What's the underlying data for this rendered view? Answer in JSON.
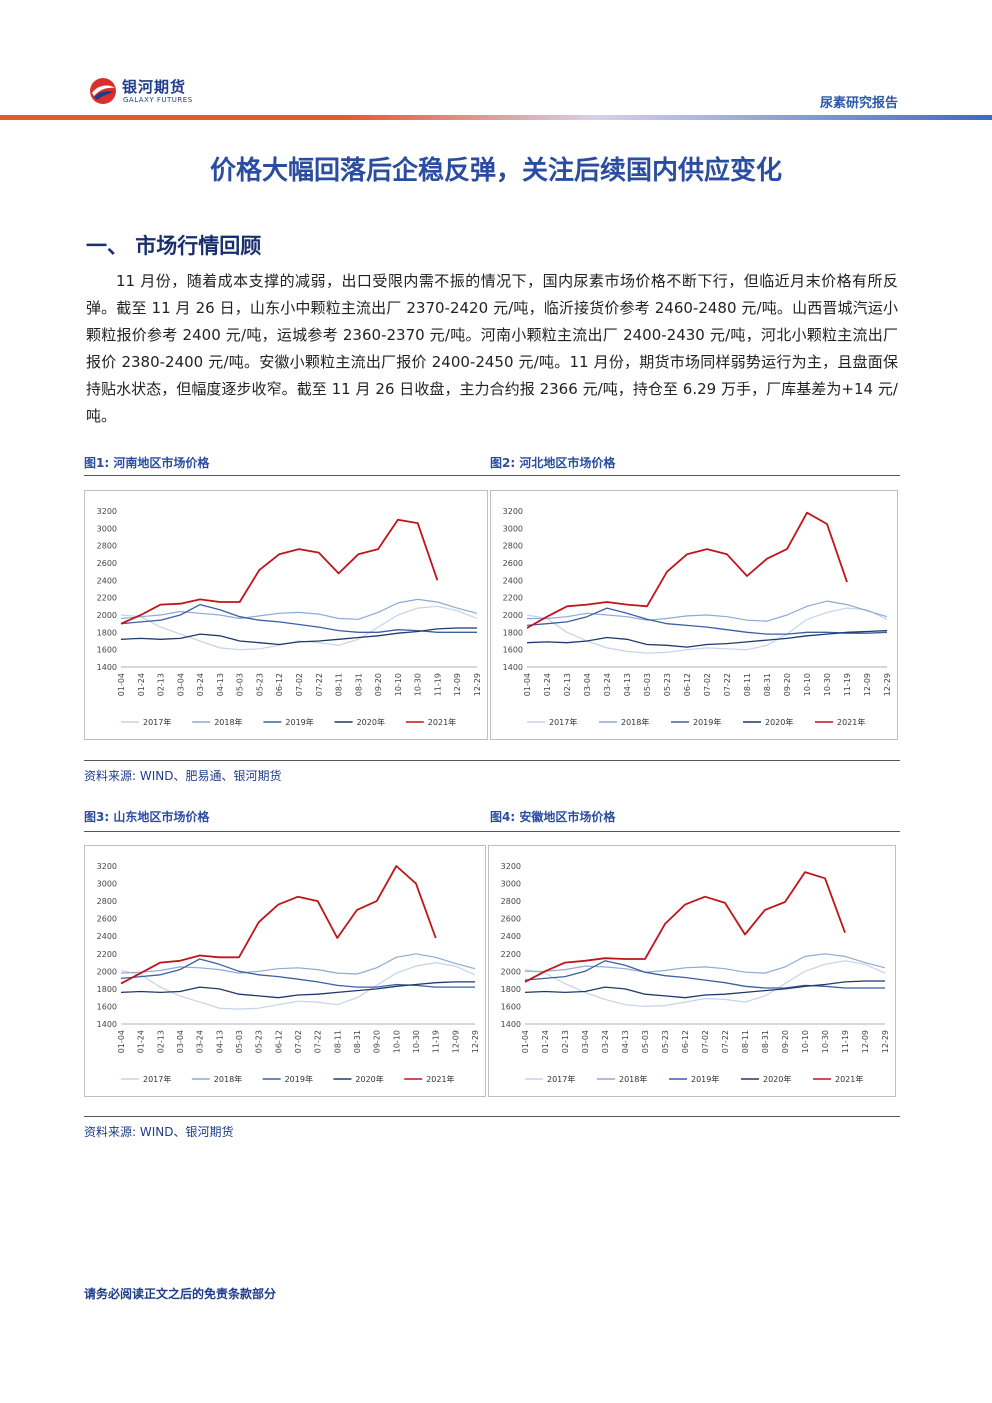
{
  "header": {
    "logo_cn": "银河期货",
    "logo_en": "GALAXY FUTURES",
    "report_type": "尿素研究报告"
  },
  "main_title": "价格大幅回落后企稳反弹，关注后续国内供应变化",
  "section1": {
    "title": "一、 市场行情回顾",
    "paragraph": "11 月份，随着成本支撑的减弱，出口受限内需不振的情况下，国内尿素市场价格不断下行，但临近月末价格有所反弹。截至 11 月 26 日，山东小中颗粒主流出厂 2370-2420 元/吨，临沂接货价参考 2460-2480 元/吨。山西晋城汽运小颗粒报价参考 2400 元/吨，运城参考 2360-2370 元/吨。河南小颗粒主流出厂 2400-2430 元/吨，河北小颗粒主流出厂报价 2380-2400 元/吨。安徽小颗粒主流出厂报价 2400-2450 元/吨。11 月份，期货市场同样弱势运行为主，且盘面保持贴水状态，但幅度逐步收窄。截至 11 月 26 日收盘，主力合约报 2366 元/吨，持仓至 6.29 万手，厂库基差为+14 元/吨。"
  },
  "figures": {
    "fig1_label": "图1: 河南地区市场价格",
    "fig2_label": "图2: 河北地区市场价格",
    "fig3_label": "图3: 山东地区市场价格",
    "fig4_label": "图4: 安徽地区市场价格",
    "source1": "资料来源: WIND、肥易通、银河期货",
    "source2": "资料来源: WIND、银河期货"
  },
  "footer_note": "请务必阅读正文之后的免责条款部分",
  "colors": {
    "s2017": "#c5d3e8",
    "s2018": "#8eaad6",
    "s2019": "#3b5fa3",
    "s2020": "#1f3a68",
    "s2021": "#c0141b"
  },
  "chart_data": [
    {
      "type": "line",
      "title": "图1: 河南地区市场价格",
      "x": [
        "01-04",
        "01-24",
        "02-13",
        "03-04",
        "03-24",
        "04-13",
        "05-03",
        "05-23",
        "06-12",
        "07-02",
        "07-22",
        "08-11",
        "08-31",
        "09-20",
        "10-10",
        "10-30",
        "11-19",
        "12-09",
        "12-29"
      ],
      "ylim": [
        1400,
        3200
      ],
      "yticks": [
        1400,
        1600,
        1800,
        2000,
        2200,
        2400,
        2600,
        2800,
        3000,
        3200
      ],
      "series": [
        {
          "name": "2017年",
          "values": [
            2000,
            1980,
            1860,
            1780,
            1700,
            1620,
            1600,
            1610,
            1650,
            1700,
            1680,
            1650,
            1720,
            1860,
            2000,
            2080,
            2100,
            2050,
            1960
          ]
        },
        {
          "name": "2018年",
          "values": [
            1960,
            1980,
            2000,
            2040,
            2020,
            2000,
            1960,
            1990,
            2020,
            2030,
            2010,
            1960,
            1950,
            2030,
            2140,
            2180,
            2150,
            2080,
            2020
          ]
        },
        {
          "name": "2019年",
          "values": [
            1900,
            1920,
            1940,
            2000,
            2120,
            2060,
            1980,
            1940,
            1920,
            1890,
            1860,
            1820,
            1800,
            1800,
            1830,
            1820,
            1800,
            1800,
            1800
          ]
        },
        {
          "name": "2020年",
          "values": [
            1720,
            1730,
            1720,
            1730,
            1780,
            1760,
            1700,
            1680,
            1660,
            1690,
            1700,
            1720,
            1740,
            1760,
            1790,
            1810,
            1840,
            1850,
            1850
          ]
        },
        {
          "name": "2021年",
          "values": [
            1900,
            2000,
            2120,
            2130,
            2180,
            2150,
            2150,
            2520,
            2700,
            2760,
            2720,
            2480,
            2700,
            2760,
            3100,
            3060,
            2400,
            null,
            null
          ]
        }
      ]
    },
    {
      "type": "line",
      "title": "图2: 河北地区市场价格",
      "x": [
        "01-04",
        "01-24",
        "02-13",
        "03-04",
        "03-24",
        "04-13",
        "05-03",
        "05-23",
        "06-12",
        "07-02",
        "07-22",
        "08-11",
        "08-31",
        "09-20",
        "10-10",
        "10-30",
        "11-19",
        "12-09",
        "12-29"
      ],
      "ylim": [
        1400,
        3200
      ],
      "yticks": [
        1400,
        1600,
        1800,
        2000,
        2200,
        2400,
        2600,
        2800,
        3000,
        3200
      ],
      "series": [
        {
          "name": "2017年",
          "values": [
            2000,
            1960,
            1800,
            1700,
            1620,
            1580,
            1560,
            1570,
            1600,
            1620,
            1610,
            1600,
            1650,
            1780,
            1950,
            2030,
            2080,
            2060,
            1950
          ]
        },
        {
          "name": "2018年",
          "values": [
            1960,
            1960,
            1980,
            2020,
            2000,
            1980,
            1940,
            1960,
            1990,
            2000,
            1980,
            1940,
            1930,
            2000,
            2100,
            2160,
            2120,
            2050,
            1980
          ]
        },
        {
          "name": "2019年",
          "values": [
            1880,
            1900,
            1920,
            1980,
            2080,
            2020,
            1950,
            1900,
            1880,
            1860,
            1830,
            1800,
            1780,
            1780,
            1800,
            1800,
            1790,
            1790,
            1800
          ]
        },
        {
          "name": "2020年",
          "values": [
            1680,
            1690,
            1680,
            1700,
            1740,
            1720,
            1660,
            1650,
            1630,
            1660,
            1670,
            1690,
            1710,
            1730,
            1760,
            1780,
            1800,
            1810,
            1820
          ]
        },
        {
          "name": "2021年",
          "values": [
            1850,
            1980,
            2100,
            2120,
            2150,
            2120,
            2100,
            2500,
            2700,
            2760,
            2700,
            2450,
            2650,
            2760,
            3180,
            3050,
            2380,
            null,
            null
          ]
        }
      ]
    },
    {
      "type": "line",
      "title": "图3: 山东地区市场价格",
      "x": [
        "01-04",
        "01-24",
        "02-13",
        "03-04",
        "03-24",
        "04-13",
        "05-03",
        "05-23",
        "06-12",
        "07-02",
        "07-22",
        "08-11",
        "08-31",
        "09-20",
        "10-10",
        "10-30",
        "11-19",
        "12-09",
        "12-29"
      ],
      "ylim": [
        1400,
        3200
      ],
      "yticks": [
        1400,
        1600,
        1800,
        2000,
        2200,
        2400,
        2600,
        2800,
        3000,
        3200
      ],
      "series": [
        {
          "name": "2017年",
          "values": [
            2010,
            1960,
            1820,
            1720,
            1650,
            1580,
            1570,
            1580,
            1620,
            1660,
            1650,
            1620,
            1700,
            1840,
            1980,
            2060,
            2100,
            2060,
            1960
          ]
        },
        {
          "name": "2018年",
          "values": [
            1980,
            1990,
            2010,
            2050,
            2040,
            2020,
            1980,
            2000,
            2030,
            2040,
            2020,
            1980,
            1970,
            2040,
            2160,
            2200,
            2160,
            2090,
            2030
          ]
        },
        {
          "name": "2019年",
          "values": [
            1920,
            1940,
            1960,
            2020,
            2140,
            2080,
            2000,
            1960,
            1940,
            1910,
            1880,
            1840,
            1820,
            1820,
            1850,
            1840,
            1820,
            1820,
            1820
          ]
        },
        {
          "name": "2020年",
          "values": [
            1760,
            1770,
            1760,
            1770,
            1820,
            1800,
            1740,
            1720,
            1700,
            1730,
            1740,
            1760,
            1780,
            1800,
            1830,
            1850,
            1870,
            1880,
            1880
          ]
        },
        {
          "name": "2021年",
          "values": [
            1860,
            1980,
            2100,
            2120,
            2180,
            2160,
            2160,
            2560,
            2760,
            2850,
            2800,
            2380,
            2700,
            2800,
            3200,
            3000,
            2380,
            null,
            null
          ]
        }
      ]
    },
    {
      "type": "line",
      "title": "图4: 安徽地区市场价格",
      "x": [
        "01-04",
        "01-24",
        "02-13",
        "03-04",
        "03-24",
        "04-13",
        "05-03",
        "05-23",
        "06-12",
        "07-02",
        "07-22",
        "08-11",
        "08-31",
        "09-20",
        "10-10",
        "10-30",
        "11-19",
        "12-09",
        "12-29"
      ],
      "ylim": [
        1400,
        3200
      ],
      "yticks": [
        1400,
        1600,
        1800,
        2000,
        2200,
        2400,
        2600,
        2800,
        3000,
        3200
      ],
      "series": [
        {
          "name": "2017年",
          "values": [
            2020,
            1980,
            1860,
            1760,
            1680,
            1620,
            1600,
            1610,
            1650,
            1690,
            1680,
            1650,
            1720,
            1860,
            2000,
            2080,
            2120,
            2080,
            1980
          ]
        },
        {
          "name": "2018年",
          "values": [
            2000,
            2000,
            2020,
            2060,
            2050,
            2030,
            1990,
            2010,
            2040,
            2050,
            2030,
            1990,
            1980,
            2050,
            2170,
            2200,
            2170,
            2100,
            2040
          ]
        },
        {
          "name": "2019年",
          "values": [
            1900,
            1920,
            1940,
            2000,
            2120,
            2070,
            1990,
            1950,
            1930,
            1900,
            1870,
            1830,
            1810,
            1810,
            1840,
            1830,
            1810,
            1810,
            1810
          ]
        },
        {
          "name": "2020年",
          "values": [
            1760,
            1770,
            1760,
            1770,
            1820,
            1800,
            1740,
            1720,
            1700,
            1730,
            1740,
            1760,
            1780,
            1800,
            1830,
            1850,
            1880,
            1890,
            1890
          ]
        },
        {
          "name": "2021年",
          "values": [
            1880,
            2000,
            2100,
            2120,
            2150,
            2140,
            2140,
            2540,
            2760,
            2850,
            2780,
            2420,
            2700,
            2790,
            3130,
            3060,
            2440,
            null,
            null
          ]
        }
      ]
    }
  ]
}
